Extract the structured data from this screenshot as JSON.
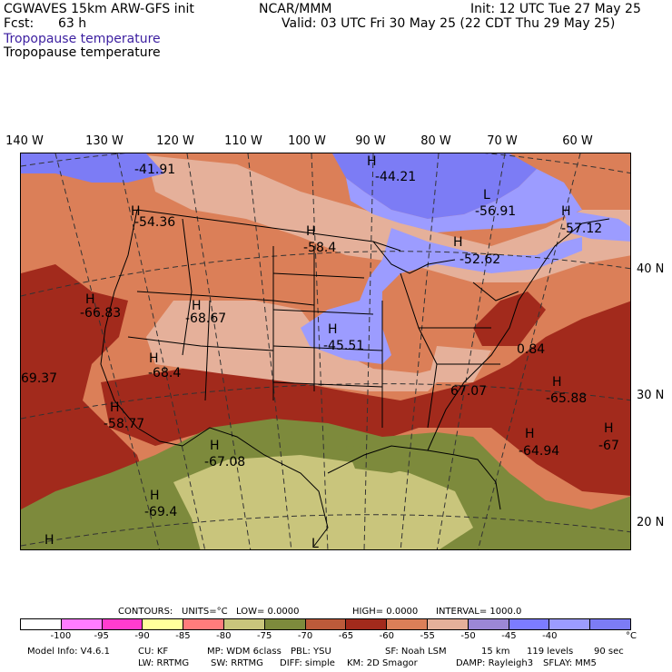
{
  "header": {
    "model": "CGWAVES 15km ARW-GFS init",
    "fcst_label": "Fcst:",
    "fcst_value": "63 h",
    "org": "NCAR/MMM",
    "init": "Init: 12 UTC Tue 27 May 25",
    "valid": "Valid: 03 UTC Fri 30 May 25 (22 CDT Thu 29 May 25)",
    "field_title_1": "Tropopause temperature",
    "field_title_2": "Tropopause temperature"
  },
  "longitudes": [
    "140 W",
    "130 W",
    "120 W",
    "110 W",
    "100 W",
    "90 W",
    "80 W",
    "70 W",
    "60 W"
  ],
  "latitudes": [
    "40 N",
    "30 N",
    "20 N"
  ],
  "map_labels": [
    {
      "letter": "",
      "value": "-41.91"
    },
    {
      "letter": "H",
      "value": "-44.21"
    },
    {
      "letter": "L",
      "value": "-56.91"
    },
    {
      "letter": "H",
      "value": "-54.36"
    },
    {
      "letter": "H",
      "value": "-58.4"
    },
    {
      "letter": "H",
      "value": "-52.62"
    },
    {
      "letter": "H",
      "value": "-57.12"
    },
    {
      "letter": "H",
      "value": "-66.83"
    },
    {
      "letter": "H",
      "value": "-68.67"
    },
    {
      "letter": "H",
      "value": "-45.51"
    },
    {
      "letter": "",
      "value": "0.84"
    },
    {
      "letter": "",
      "value": "69.37"
    },
    {
      "letter": "H",
      "value": "-68.4"
    },
    {
      "letter": "H",
      "value": "-65.88"
    },
    {
      "letter": "",
      "value": "67.07"
    },
    {
      "letter": "H",
      "value": "-58.77"
    },
    {
      "letter": "H",
      "value": "-64.94"
    },
    {
      "letter": "H",
      "value": "-67"
    },
    {
      "letter": "H",
      "value": "-67.08"
    },
    {
      "letter": "H",
      "value": "-69.4"
    },
    {
      "letter": "H",
      "value": ""
    },
    {
      "letter": "L",
      "value": ""
    }
  ],
  "contours": {
    "heading": "CONTOURS:",
    "units": "UNITS=°C",
    "low": "LOW= 0.0000",
    "high": "HIGH= 0.0000",
    "interval": "INTERVAL= 1000.0"
  },
  "colorbar": {
    "colors": [
      "#ffffff",
      "#ff7cff",
      "#ff3ccf",
      "#ffff9c",
      "#ff7c7c",
      "#c9c57c",
      "#7d8a3c",
      "#bc5a3a",
      "#a22a1c",
      "#db7f58",
      "#e5b09a",
      "#9c87d6",
      "#7c7cff",
      "#9c9cff",
      "#7c7cf5"
    ],
    "ticks": [
      "-100",
      "-95",
      "-90",
      "-85",
      "-80",
      "-75",
      "-70",
      "-65",
      "-60",
      "-55",
      "-50",
      "-45",
      "-40"
    ],
    "unit": "°C"
  },
  "footer": {
    "line1": [
      "Model Info: V4.6.1",
      "CU: KF",
      "MP: WDM 6class",
      "PBL: YSU",
      "SF: Noah LSM",
      "15 km",
      "119 levels",
      "90 sec"
    ],
    "line2": [
      "LW: RRTMG",
      "SW: RRTMG",
      "DIFF: simple",
      "KM: 2D Smagor",
      "DAMP: Rayleigh3",
      "SFLAY: MM5"
    ]
  },
  "map_colors": {
    "light_blue": "#9c9cff",
    "blue": "#7c7cf5",
    "pink": "#e5b09a",
    "orange": "#db7f58",
    "dark_red": "#a22a1c",
    "olive": "#7d8a3c",
    "khaki": "#c9c57c"
  }
}
